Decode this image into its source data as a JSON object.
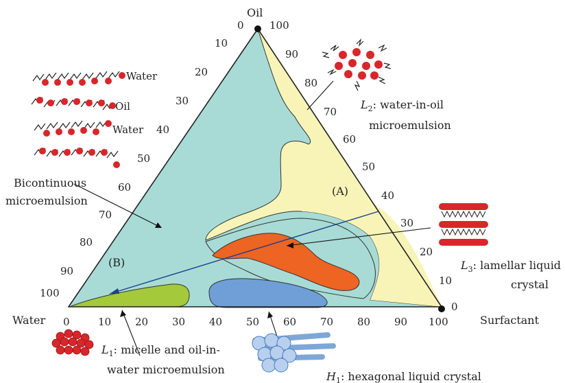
{
  "vertices": {
    "oil": "Oil",
    "water": "Water",
    "surfactant": "Surfactant"
  },
  "left_ticks": [
    "0",
    "10",
    "20",
    "30",
    "40",
    "50",
    "60",
    "70",
    "80",
    "90",
    "100"
  ],
  "right_ticks": [
    "100",
    "90",
    "80",
    "70",
    "60",
    "50",
    "40",
    "30",
    "20",
    "10",
    "0"
  ],
  "bottom_ticks": [
    "0",
    "10",
    "20",
    "30",
    "40",
    "50",
    "60",
    "70",
    "80",
    "90",
    "100"
  ],
  "labels": {
    "l2_prefix": "L",
    "l2_sub": "2",
    "l2_line1": ": water-in-oil",
    "l2_line2": "microemulsion",
    "l3_prefix": "L",
    "l3_sub": "3",
    "l3_line1": ": lamellar liquid",
    "l3_line2": "crystal",
    "l1_prefix": "L",
    "l1_sub": "1",
    "l1_line1": ": micelle and oil-in-",
    "l1_line2": "water microemulsion",
    "h1_prefix": "H",
    "h1_sub": "1",
    "h1_line1": ": hexagonal liquid crystal",
    "bicont_line1": "Bicontinuous",
    "bicont_line2": "microemulsion",
    "region_a": "(A)",
    "region_b": "(B)",
    "layer_water1": "Water",
    "layer_oil": "Oil",
    "layer_water2": "Water"
  },
  "colors": {
    "background_region": "#a8dbd6",
    "l2_region": "#f8f4b8",
    "l3_region": "#ee6422",
    "l1_region": "#a4c93a",
    "h1_region": "#6f9fd6",
    "tie_line": "#1f3f8a",
    "molecule_head": "#d8262a"
  },
  "icons": [
    "surfactant-layer-icon",
    "reverse-micelle-icon",
    "lamellar-stack-icon",
    "micelle-cluster-icon",
    "hexagonal-rods-icon"
  ]
}
